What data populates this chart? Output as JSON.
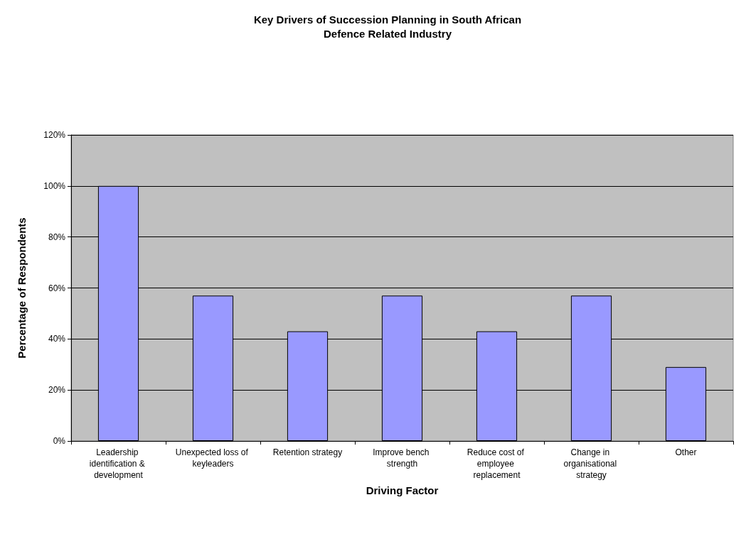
{
  "chart_data": {
    "type": "bar",
    "title": "Key Drivers of Succession Planning in South African\nDefence Related Industry",
    "xlabel": "Driving Factor",
    "ylabel": "Percentage of Respondents",
    "categories": [
      "Leadership identification & development",
      "Unexpected loss of keyleaders",
      "Retention strategy",
      "Improve bench strength",
      "Reduce cost of employee replacement",
      "Change in organisational strategy",
      "Other"
    ],
    "values": [
      100,
      57,
      43,
      57,
      43,
      57,
      29
    ],
    "color": "#9999ff",
    "ylim": [
      0,
      120
    ],
    "yticks": [
      {
        "value": 0,
        "label": "0%"
      },
      {
        "value": 20,
        "label": "20%"
      },
      {
        "value": 40,
        "label": "40%"
      },
      {
        "value": 60,
        "label": "60%"
      },
      {
        "value": 80,
        "label": "80%"
      },
      {
        "value": 100,
        "label": "100%"
      },
      {
        "value": 120,
        "label": "120%"
      }
    ],
    "grid": "y"
  }
}
